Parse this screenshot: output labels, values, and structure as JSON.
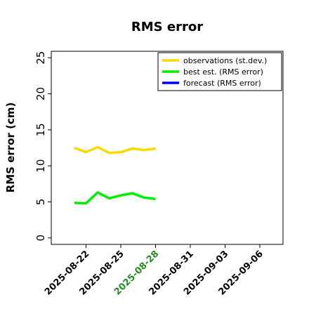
{
  "chart_data": {
    "type": "line",
    "title": "RMS error",
    "y_label": "RMS error (cm)",
    "x": [
      "2025-08-21",
      "2025-08-22",
      "2025-08-23",
      "2025-08-24",
      "2025-08-25",
      "2025-08-26",
      "2025-08-27",
      "2025-08-28"
    ],
    "series": [
      {
        "name": "observations (st.dev.)",
        "color": "#ffd700",
        "values": [
          12.5,
          11.9,
          12.6,
          11.8,
          11.9,
          12.4,
          12.2,
          12.4
        ]
      },
      {
        "name": "best est. (RMS error)",
        "color": "#00ee00",
        "values": [
          4.86,
          4.8,
          6.3,
          5.5,
          5.9,
          6.2,
          5.6,
          5.4
        ]
      },
      {
        "name": "forecast (RMS error)",
        "color": "#0000ff",
        "values": [
          null,
          null,
          null,
          null,
          null,
          null,
          null,
          null
        ]
      }
    ],
    "xlim": [
      "2025-08-19",
      "2025-09-08"
    ],
    "xticks": [
      "2025-08-22",
      "2025-08-25",
      "2025-08-28",
      "2025-08-31",
      "2025-09-03",
      "2025-09-06"
    ],
    "xtick_colors": [
      "#000000",
      "#000000",
      "#228b22",
      "#000000",
      "#000000",
      "#000000"
    ],
    "ylim": [
      -0.9,
      25.9
    ],
    "yticks": [
      0,
      5,
      10,
      15,
      20,
      25
    ],
    "legend": "upper right"
  }
}
